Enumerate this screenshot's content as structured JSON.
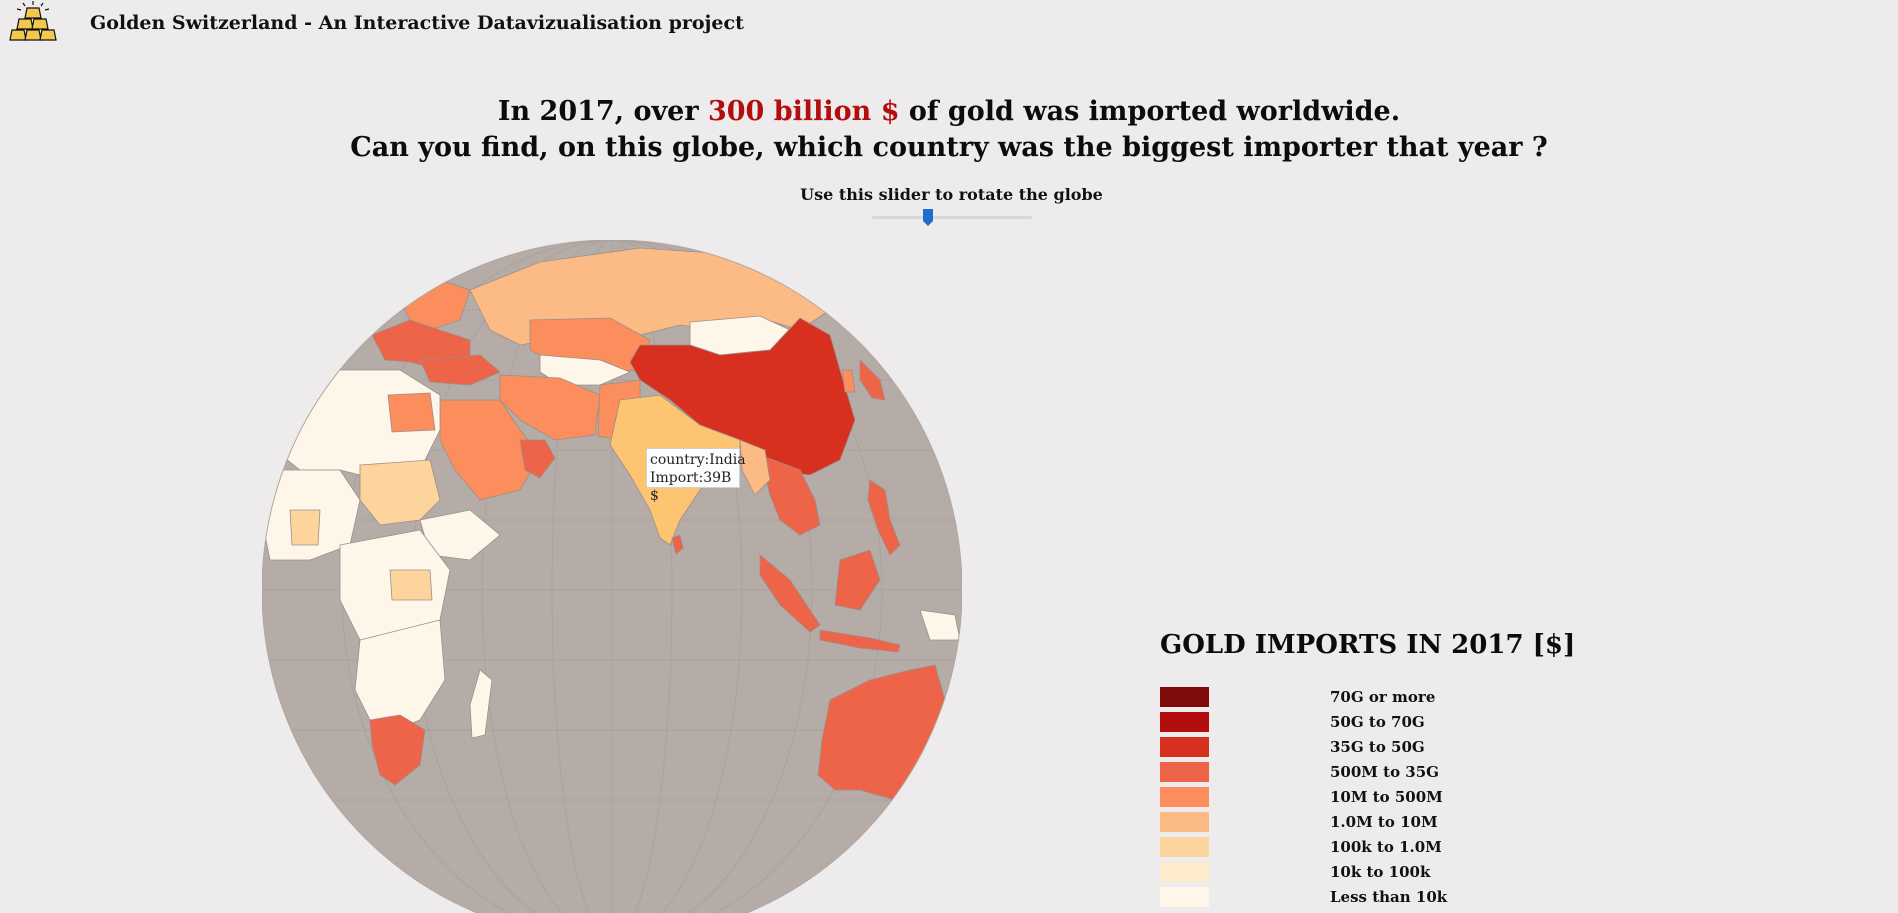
{
  "header": {
    "title": "Golden Switzerland - An Interactive Datavizualisation project",
    "logo_icon": "gold-bars-icon"
  },
  "headline": {
    "line1_before": "In 2017, over ",
    "line1_accent": "300 billion $",
    "line1_after": " of gold was imported worldwide.",
    "line2": "Can you find, on this globe, which country was the biggest importer that year ?",
    "accent_color": "#b40d0d"
  },
  "slider": {
    "label": "Use this slider to rotate the globe",
    "value": 0.35,
    "thumb_color": "#1a6fd1"
  },
  "tooltip": {
    "country_line": "country:India",
    "import_line": "Import:39B $"
  },
  "legend": {
    "title": "GOLD IMPORTS IN 2017 [$]",
    "items": [
      {
        "label": "70G or more",
        "color": "#7f0b0b"
      },
      {
        "label": "50G to 70G",
        "color": "#b20e0e"
      },
      {
        "label": "35G to 50G",
        "color": "#d8301f"
      },
      {
        "label": "500M to 35G",
        "color": "#ee6448"
      },
      {
        "label": "10M to 500M",
        "color": "#fb8e5c"
      },
      {
        "label": "1.0M to 10M",
        "color": "#fcbb84"
      },
      {
        "label": "100k to 1.0M",
        "color": "#fdd49c"
      },
      {
        "label": "10k to 100k",
        "color": "#feebcc"
      },
      {
        "label": "Less than 10k",
        "color": "#fff6ea"
      }
    ]
  },
  "globe": {
    "ocean_color": "#b6aca7",
    "graticule_color": "#a8a09b"
  }
}
